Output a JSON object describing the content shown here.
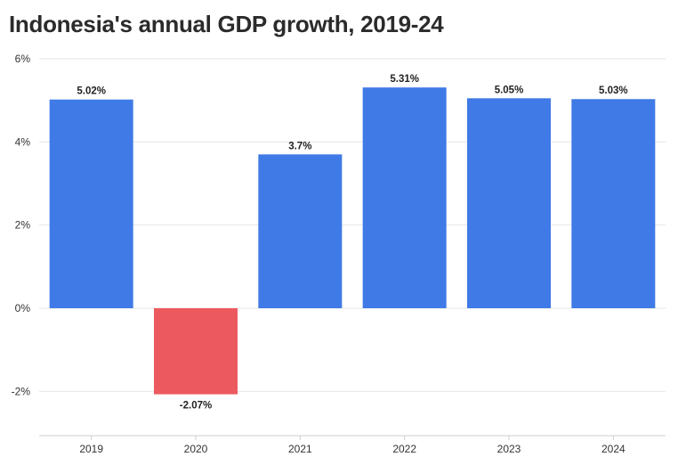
{
  "chart_data": {
    "type": "bar",
    "title": "Indonesia's annual GDP growth, 2019-24",
    "categories": [
      "2019",
      "2020",
      "2021",
      "2022",
      "2023",
      "2024"
    ],
    "values": [
      5.02,
      -2.07,
      3.7,
      5.31,
      5.05,
      5.03
    ],
    "data_labels": [
      "5.02%",
      "-2.07%",
      "3.7%",
      "5.31%",
      "5.05%",
      "5.03%"
    ],
    "ylim": [
      -3,
      6
    ],
    "yticks": [
      6,
      4,
      2,
      0,
      -2
    ],
    "ytick_labels": [
      "6%",
      "4%",
      "2%",
      "0%",
      "-2%"
    ],
    "xlabel": "",
    "ylabel": "",
    "grid": true,
    "colors": {
      "positive": "#3f7ae6",
      "negative": "#ec5a5f",
      "grid": "#e6e6e6",
      "axis": "#cfcfcf"
    }
  }
}
